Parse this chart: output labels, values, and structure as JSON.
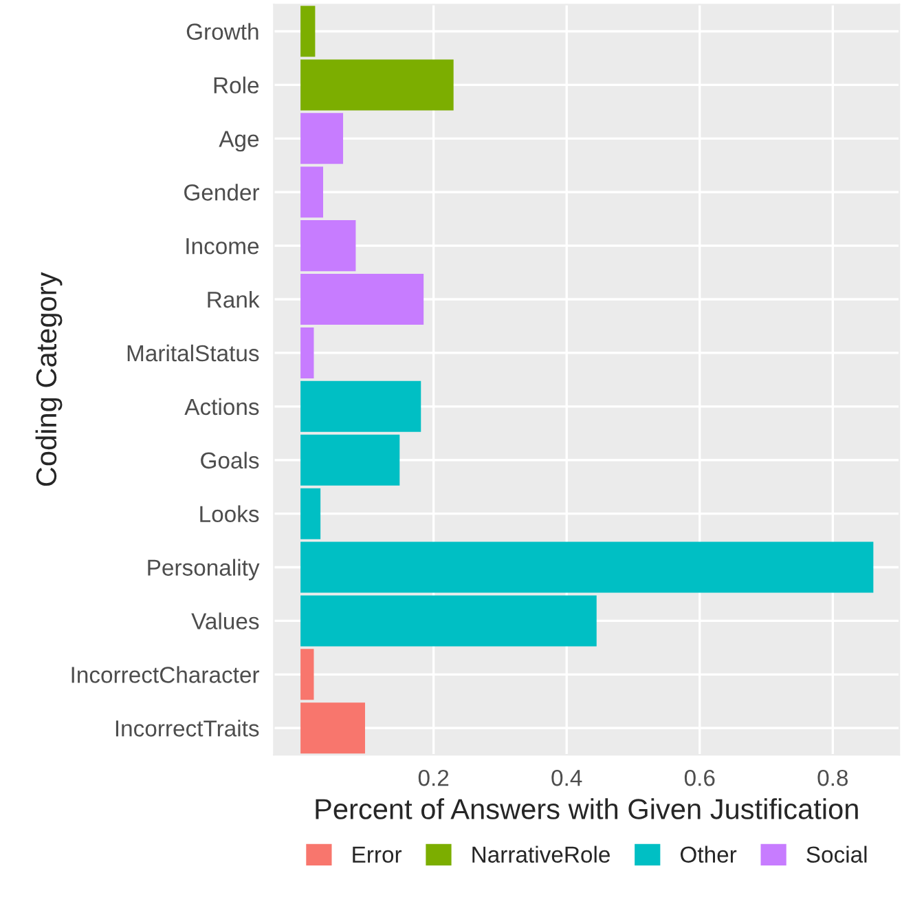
{
  "chart_data": {
    "type": "bar",
    "orientation": "horizontal",
    "xlabel": "Percent of Answers with Given Justification",
    "ylabel": "Coding Category",
    "categories": [
      "Growth",
      "Role",
      "Age",
      "Gender",
      "Income",
      "Rank",
      "MaritalStatus",
      "Actions",
      "Goals",
      "Looks",
      "Personality",
      "Values",
      "IncorrectCharacter",
      "IncorrectTraits"
    ],
    "series": [
      {
        "name": "Error",
        "color": "#f8766d",
        "values": [
          null,
          null,
          null,
          null,
          null,
          null,
          null,
          null,
          null,
          null,
          null,
          null,
          0.02,
          0.097
        ]
      },
      {
        "name": "NarrativeRole",
        "color": "#7cae00",
        "values": [
          0.022,
          0.23,
          null,
          null,
          null,
          null,
          null,
          null,
          null,
          null,
          null,
          null,
          null,
          null
        ]
      },
      {
        "name": "Other",
        "color": "#00bfc4",
        "values": [
          null,
          null,
          null,
          null,
          null,
          null,
          null,
          0.181,
          0.149,
          0.03,
          0.861,
          0.445,
          null,
          null
        ]
      },
      {
        "name": "Social",
        "color": "#c77cff",
        "values": [
          null,
          null,
          0.064,
          0.034,
          0.083,
          0.185,
          0.02,
          null,
          null,
          null,
          null,
          null,
          null,
          null
        ]
      }
    ],
    "xlim": [
      -0.04,
      0.9
    ],
    "xticks": [
      0.2,
      0.4,
      0.6,
      0.8
    ],
    "grid": true,
    "legend": "bottom"
  }
}
